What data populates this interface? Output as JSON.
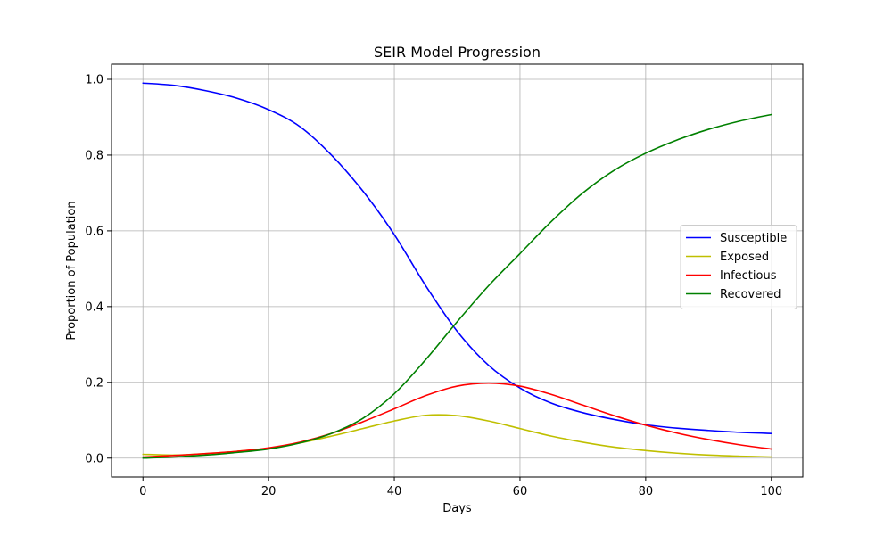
{
  "chart_data": {
    "type": "line",
    "title": "SEIR Model Progression",
    "xlabel": "Days",
    "ylabel": "Proportion of Population",
    "xlim": [
      -5,
      105
    ],
    "ylim": [
      -0.05,
      1.04
    ],
    "xticks": [
      0,
      20,
      40,
      60,
      80,
      100
    ],
    "yticks": [
      0.0,
      0.2,
      0.4,
      0.6,
      0.8,
      1.0
    ],
    "xtick_labels": [
      "0",
      "20",
      "40",
      "60",
      "80",
      "100"
    ],
    "ytick_labels": [
      "0.0",
      "0.2",
      "0.4",
      "0.6",
      "0.8",
      "1.0"
    ],
    "grid": true,
    "legend_position": "center-right",
    "x": [
      0,
      5,
      10,
      15,
      20,
      25,
      30,
      35,
      40,
      45,
      50,
      55,
      60,
      65,
      70,
      75,
      80,
      85,
      90,
      95,
      100
    ],
    "series": [
      {
        "name": "Susceptible",
        "color": "#0000ff",
        "values": [
          0.99,
          0.984,
          0.97,
          0.95,
          0.92,
          0.875,
          0.8,
          0.705,
          0.59,
          0.455,
          0.335,
          0.245,
          0.185,
          0.145,
          0.12,
          0.102,
          0.088,
          0.079,
          0.073,
          0.068,
          0.065
        ]
      },
      {
        "name": "Exposed",
        "color": "#bfbf00",
        "values": [
          0.01,
          0.008,
          0.012,
          0.018,
          0.026,
          0.04,
          0.058,
          0.078,
          0.098,
          0.113,
          0.112,
          0.098,
          0.078,
          0.058,
          0.042,
          0.029,
          0.02,
          0.013,
          0.008,
          0.005,
          0.003
        ]
      },
      {
        "name": "Infectious",
        "color": "#ff0000",
        "values": [
          0.003,
          0.007,
          0.012,
          0.018,
          0.027,
          0.042,
          0.065,
          0.096,
          0.13,
          0.165,
          0.19,
          0.198,
          0.19,
          0.168,
          0.14,
          0.112,
          0.087,
          0.066,
          0.049,
          0.035,
          0.024
        ]
      },
      {
        "name": "Recovered",
        "color": "#008000",
        "values": [
          0.0,
          0.003,
          0.008,
          0.015,
          0.024,
          0.04,
          0.065,
          0.105,
          0.17,
          0.26,
          0.36,
          0.455,
          0.54,
          0.625,
          0.7,
          0.76,
          0.805,
          0.84,
          0.868,
          0.89,
          0.907
        ]
      }
    ]
  }
}
